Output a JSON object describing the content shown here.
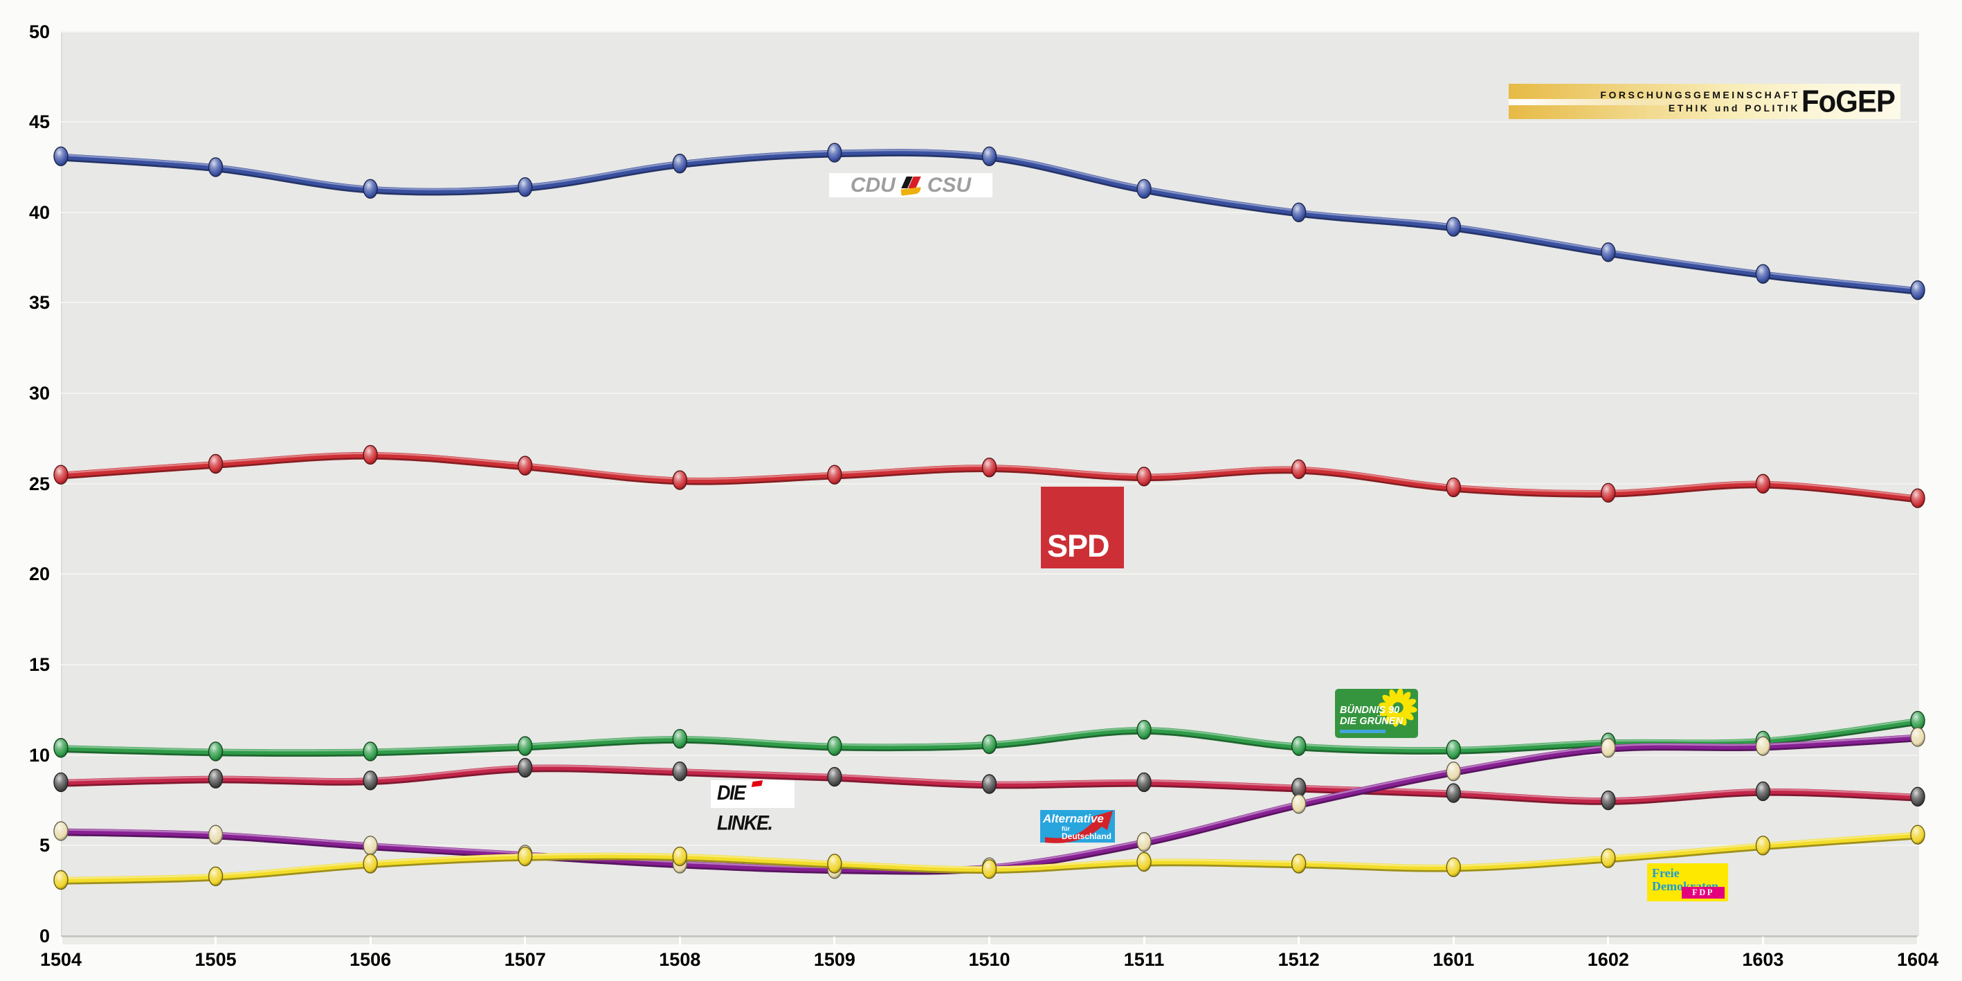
{
  "branding": {
    "fogep": {
      "line1": "FORSCHUNGSGEMEINSCHAFT",
      "line2": "ETHIK und POLITIK",
      "abbr": "FoGEP"
    }
  },
  "chart_data": {
    "type": "line",
    "title": "",
    "xlabel": "",
    "ylabel": "",
    "x": [
      "1504",
      "1505",
      "1506",
      "1507",
      "1508",
      "1509",
      "1510",
      "1511",
      "1512",
      "1601",
      "1602",
      "1603",
      "1604"
    ],
    "ylim": [
      0,
      50
    ],
    "y_ticks": [
      0,
      5,
      10,
      15,
      20,
      25,
      30,
      35,
      40,
      45,
      50
    ],
    "grid": true,
    "legend_position": "party logos placed next to lines",
    "series": [
      {
        "name": "CDU/CSU",
        "color": "#3a50a0",
        "marker_color": "#3f55a8",
        "values": [
          43.1,
          42.5,
          41.3,
          41.4,
          42.7,
          43.3,
          43.1,
          41.3,
          40.0,
          39.2,
          37.8,
          36.6,
          35.7
        ]
      },
      {
        "name": "SPD",
        "color": "#cd2f35",
        "marker_color": "#cd2f35",
        "values": [
          25.5,
          26.1,
          26.6,
          26.0,
          25.2,
          25.5,
          25.9,
          25.4,
          25.8,
          24.8,
          24.5,
          25.0,
          24.2
        ]
      },
      {
        "name": "BÜNDNIS 90/DIE GRÜNEN",
        "color": "#2f9c49",
        "marker_color": "#2f9c49",
        "values": [
          10.4,
          10.2,
          10.2,
          10.5,
          10.9,
          10.5,
          10.6,
          11.4,
          10.5,
          10.3,
          10.7,
          10.8,
          11.9
        ]
      },
      {
        "name": "DIE LINKE",
        "color": "#c32649",
        "marker_color": "#4e4e4e",
        "values": [
          8.5,
          8.7,
          8.6,
          9.3,
          9.1,
          8.8,
          8.4,
          8.5,
          8.2,
          7.9,
          7.5,
          8.0,
          7.7
        ]
      },
      {
        "name": "AfD",
        "color": "#872093",
        "marker_color": "#e9dcae",
        "values": [
          5.8,
          5.6,
          5.0,
          4.5,
          4.0,
          3.7,
          3.8,
          5.2,
          7.3,
          9.1,
          10.4,
          10.5,
          11.0
        ]
      },
      {
        "name": "FDP",
        "color": "#f3dd2a",
        "marker_color": "#f0d428",
        "values": [
          3.1,
          3.3,
          4.0,
          4.4,
          4.4,
          4.0,
          3.7,
          4.1,
          4.0,
          3.8,
          4.3,
          5.0,
          5.6
        ]
      }
    ]
  },
  "logos": {
    "fogep": {
      "line1": "FORSCHUNGSGEMEINSCHAFT",
      "line2": "ETHIK und POLITIK",
      "abbr": "FoGEP"
    },
    "cducsu": {
      "cdu": "CDU",
      "csu": "CSU",
      "bg": "#ffffff",
      "text_color": "#9e9e9e"
    },
    "spd": {
      "text": "SPD",
      "bg": "#cd2f36"
    },
    "gruene": {
      "line1": "BÜNDNIS 90",
      "line2": "DIE GRÜNEN",
      "bg": "#35953f",
      "bar_color": "#41a5dc",
      "sunflower_color": "#f9e300"
    },
    "linke": {
      "text": "DIE LINKE.",
      "bg": "#ffffff",
      "flag_color": "#e3000f"
    },
    "afd": {
      "line1": "Alternative",
      "line2": "für",
      "line3": "Deutschland",
      "bg": "#29a5de",
      "arrow_color": "#d2232a"
    },
    "fdp": {
      "line1": "Freie",
      "line2": "Demokraten",
      "abbr": "FDP",
      "bg": "#ffe800",
      "text_color": "#199cd8",
      "badge_color": "#e5007d"
    }
  }
}
